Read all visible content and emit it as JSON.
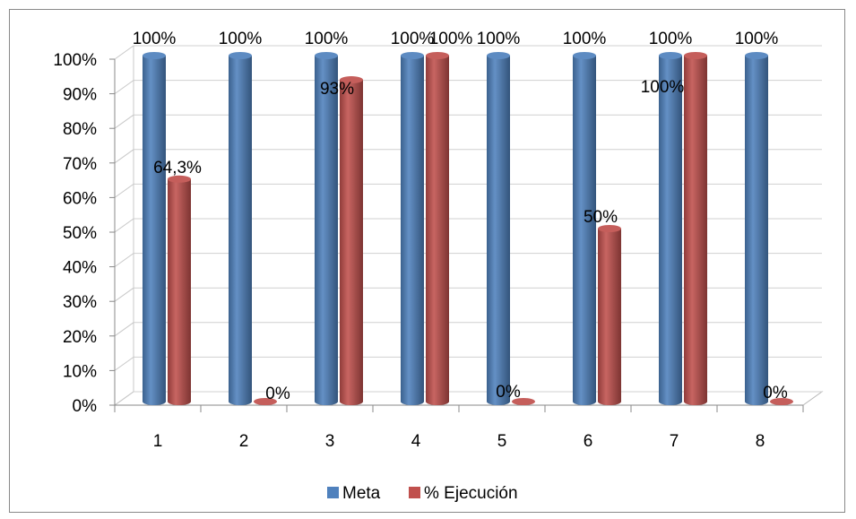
{
  "chart_data": {
    "type": "bar",
    "style": "3d-cylinder",
    "categories": [
      "1",
      "2",
      "3",
      "4",
      "5",
      "6",
      "7",
      "8"
    ],
    "series": [
      {
        "name": "Meta",
        "color": "#4F81BD",
        "values": [
          100,
          100,
          100,
          100,
          100,
          100,
          100,
          100
        ],
        "labels": [
          "100%",
          "100%",
          "100%",
          "100%",
          "100%",
          "100%",
          "100%",
          "100%"
        ]
      },
      {
        "name": "% Ejecución",
        "color": "#C0504D",
        "values": [
          64.3,
          0,
          93,
          100,
          0,
          50,
          100,
          0
        ],
        "labels": [
          "64,3%",
          "0%",
          "93%",
          "100%",
          "0%",
          "50%",
          "100%",
          "0%"
        ]
      }
    ],
    "y_ticks": [
      "0%",
      "10%",
      "20%",
      "30%",
      "40%",
      "50%",
      "60%",
      "70%",
      "80%",
      "90%",
      "100%"
    ],
    "ylim": [
      0,
      100
    ],
    "grid": true,
    "legend_position": "bottom"
  }
}
